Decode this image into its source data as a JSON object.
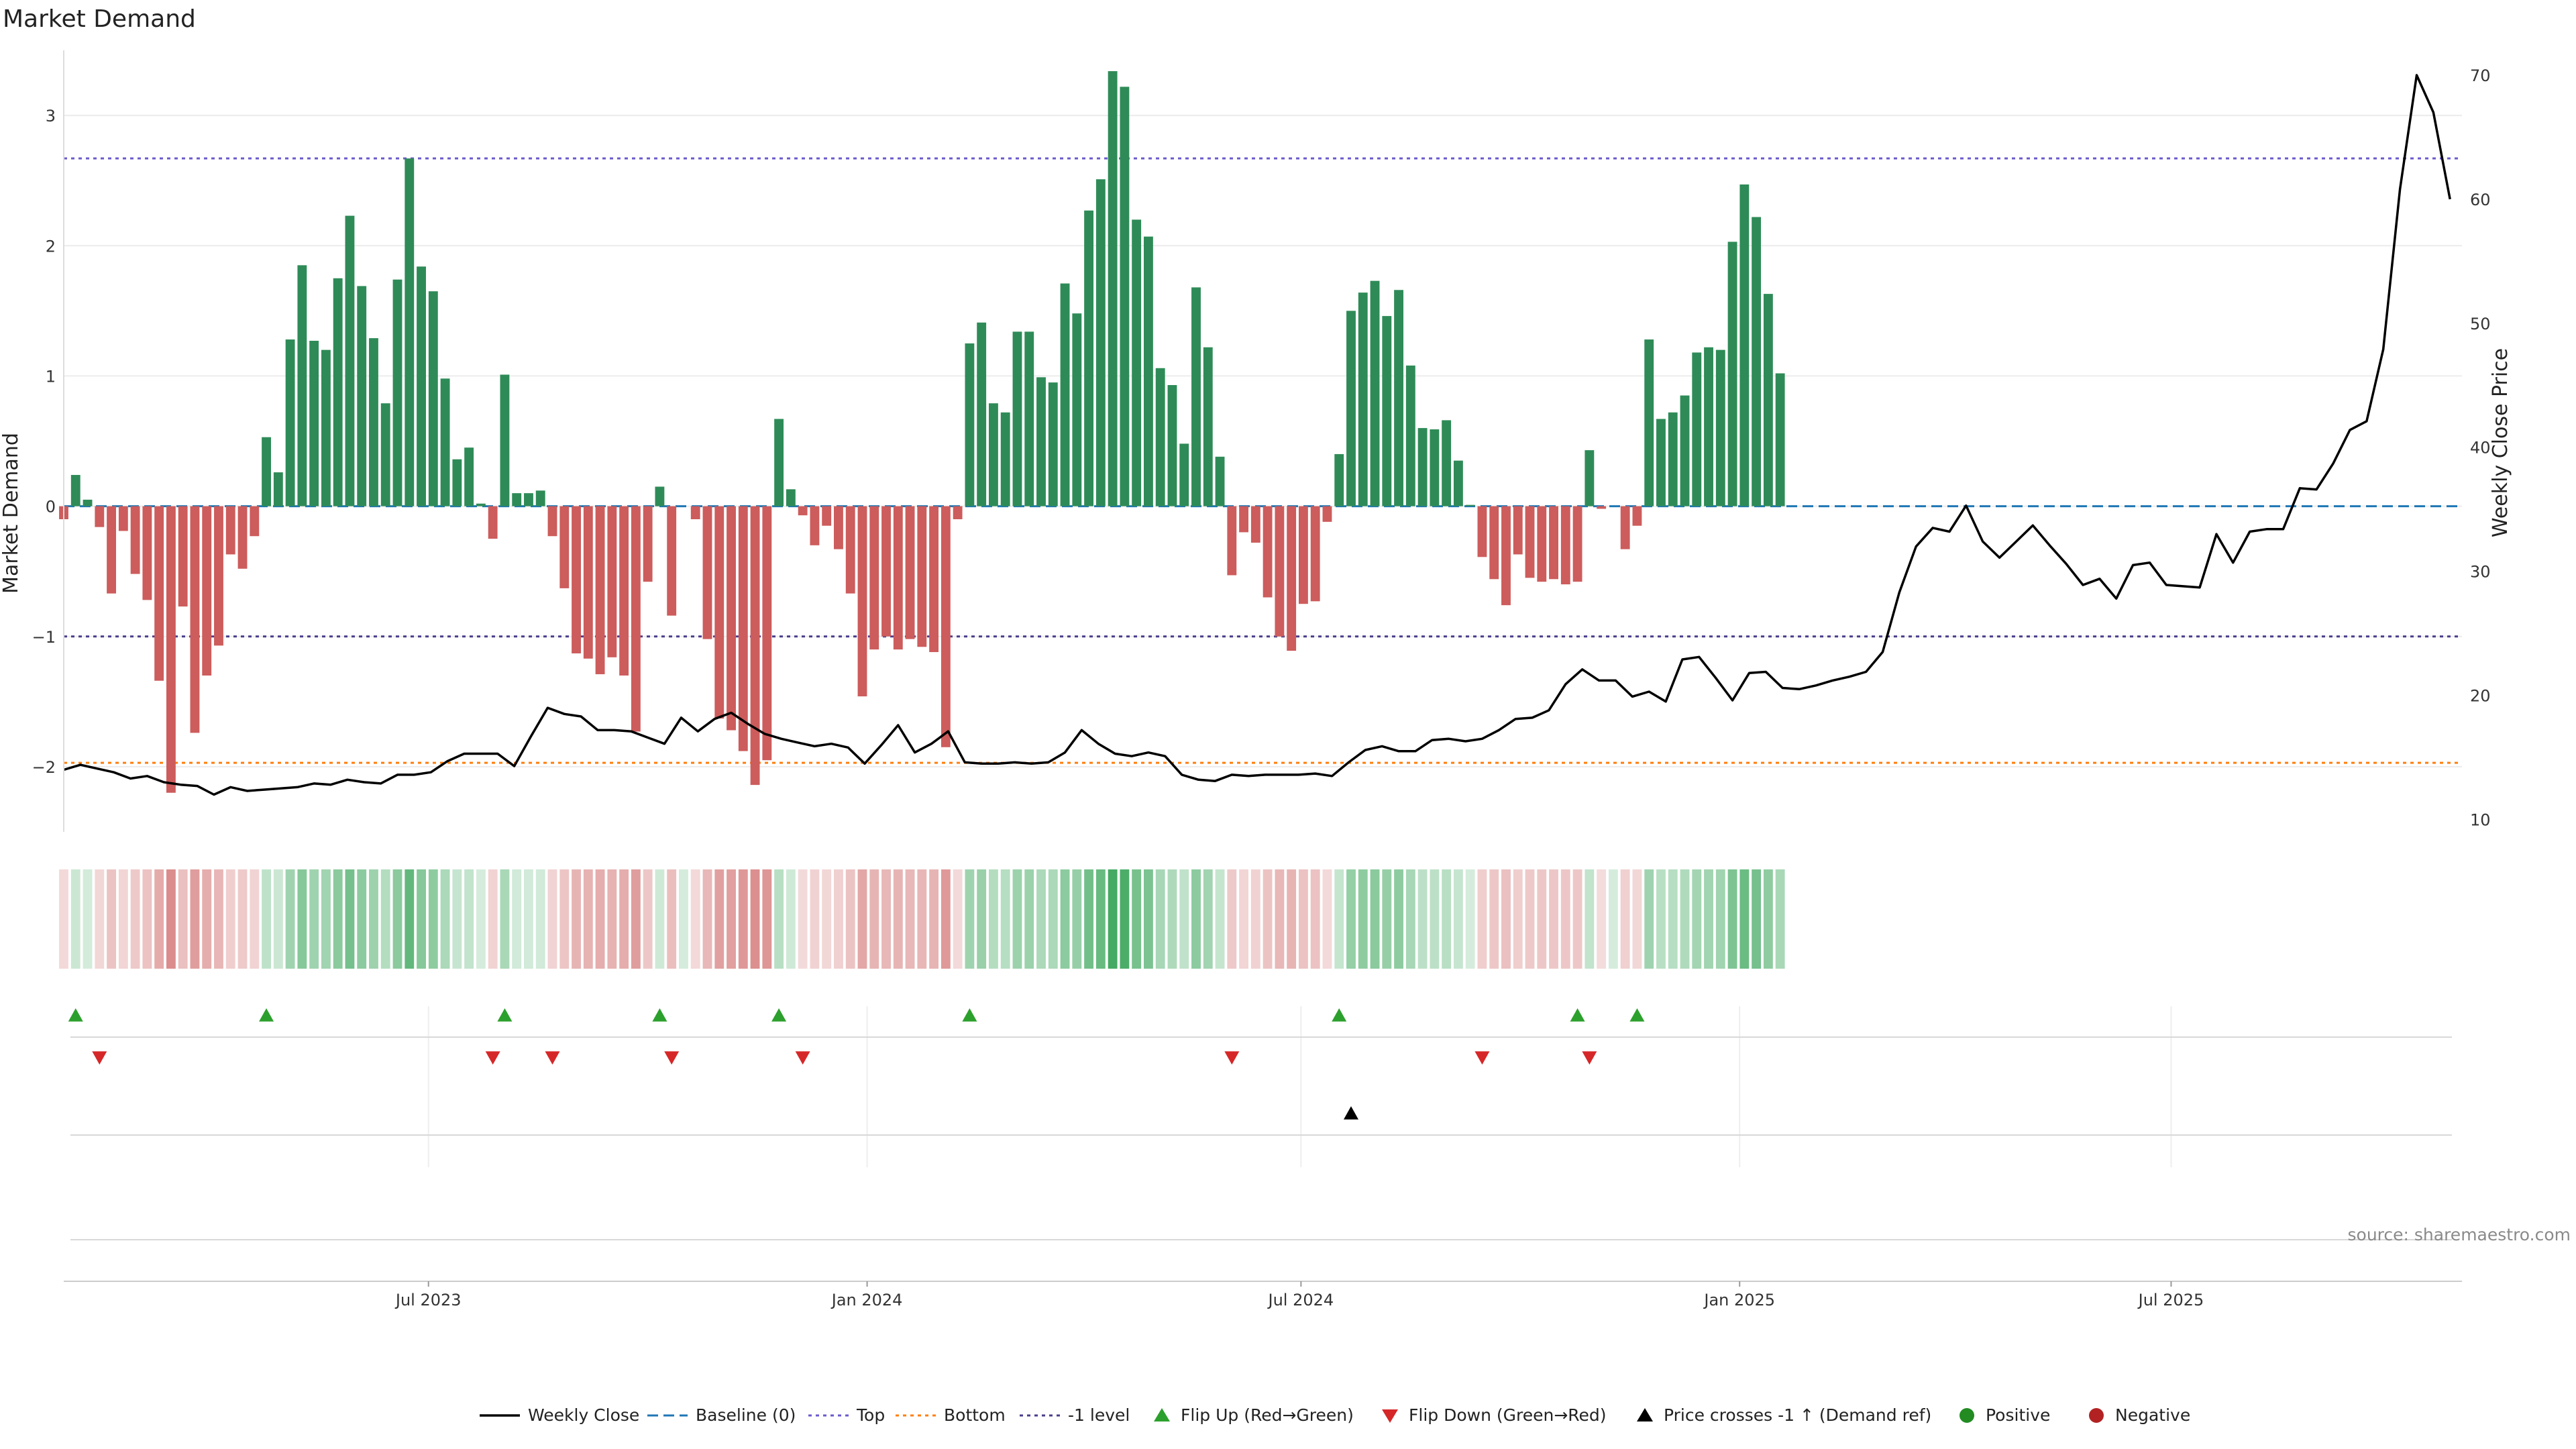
{
  "title": "Market Demand",
  "source": "source: sharemaestro.com",
  "colors": {
    "positive": "#2e8b57",
    "negative": "#cd5c5c",
    "price": "#000000",
    "baseline": "#1f77b4",
    "top": "#6a5acd",
    "bottom": "#ff7f0e",
    "minus1": "#483d8b",
    "flip_up": "#2ca02c",
    "flip_down": "#d62728",
    "cross": "#000000",
    "positive_dot": "#228b22",
    "negative_dot": "#b22222"
  },
  "chart_data": {
    "type": "bar",
    "title": "Market Demand",
    "ylabel": "Market Demand",
    "y2label": "Weekly Close Price",
    "ylim": [
      -2.5,
      3.5
    ],
    "y2lim": [
      9,
      72
    ],
    "yticks": [
      -2,
      -1,
      0,
      1,
      2,
      3
    ],
    "y2ticks": [
      10,
      20,
      30,
      40,
      50,
      60,
      70
    ],
    "xaxis": {
      "start": "2023-01-29",
      "end": "2025-10-31",
      "ticks": [
        {
          "date": "2023-07-01",
          "label": "Jul 2023"
        },
        {
          "date": "2024-01-01",
          "label": "Jan 2024"
        },
        {
          "date": "2024-07-01",
          "label": "Jul 2024"
        },
        {
          "date": "2025-01-01",
          "label": "Jan 2025"
        },
        {
          "date": "2025-07-01",
          "label": "Jul 2025"
        }
      ]
    },
    "reference_lines": {
      "baseline": 0,
      "top": 2.67,
      "bottom": -1.97,
      "minus1": -1
    },
    "bar_start_date": "2023-01-29",
    "bar_interval_days": 5,
    "demand": [
      -0.1,
      0.24,
      0.05,
      -0.16,
      -0.67,
      -0.19,
      -0.52,
      -0.72,
      -1.34,
      -2.2,
      -0.77,
      -1.74,
      -1.3,
      -1.07,
      -0.37,
      -0.48,
      -0.23,
      0.53,
      0.26,
      1.28,
      1.85,
      1.27,
      1.2,
      1.75,
      2.23,
      1.69,
      1.29,
      0.79,
      1.74,
      2.67,
      1.84,
      1.65,
      0.98,
      0.36,
      0.45,
      0.02,
      -0.25,
      1.01,
      0.1,
      0.1,
      0.12,
      -0.23,
      -0.63,
      -1.13,
      -1.17,
      -1.29,
      -1.16,
      -1.3,
      -1.73,
      -0.58,
      0.15,
      -0.84,
      0.0,
      -0.1,
      -1.02,
      -1.63,
      -1.72,
      -1.88,
      -2.14,
      -1.95,
      0.67,
      0.13,
      -0.07,
      -0.3,
      -0.15,
      -0.33,
      -0.67,
      -1.46,
      -1.1,
      -1.0,
      -1.1,
      -1.02,
      -1.08,
      -1.12,
      -1.85,
      -0.1,
      1.25,
      1.41,
      0.79,
      0.72,
      1.34,
      1.34,
      0.99,
      0.95,
      1.71,
      1.48,
      2.27,
      2.51,
      3.34,
      3.22,
      2.2,
      2.07,
      1.06,
      0.93,
      0.48,
      1.68,
      1.22,
      0.38,
      -0.53,
      -0.2,
      -0.28,
      -0.7,
      -1.0,
      -1.11,
      -0.75,
      -0.73,
      -0.12,
      0.4,
      1.5,
      1.64,
      1.73,
      1.46,
      1.66,
      1.08,
      0.6,
      0.59,
      0.66,
      0.35,
      0.01,
      -0.39,
      -0.56,
      -0.76,
      -0.37,
      -0.55,
      -0.58,
      -0.56,
      -0.6,
      -0.58,
      0.43,
      -0.02,
      0.0,
      -0.33,
      -0.15,
      1.28,
      0.67,
      0.72,
      0.85,
      1.18,
      1.22,
      1.2,
      2.03,
      2.47,
      2.22,
      1.63,
      1.02
    ],
    "price_series": [
      {
        "date": "2023-01-29",
        "close": 14.0
      },
      {
        "date": "2023-02-05",
        "close": 14.4
      },
      {
        "date": "2023-02-12",
        "close": 14.1
      },
      {
        "date": "2023-02-19",
        "close": 13.8
      },
      {
        "date": "2023-02-26",
        "close": 13.3
      },
      {
        "date": "2023-03-05",
        "close": 13.5
      },
      {
        "date": "2023-03-12",
        "close": 13.0
      },
      {
        "date": "2023-03-19",
        "close": 12.8
      },
      {
        "date": "2023-03-26",
        "close": 12.7
      },
      {
        "date": "2023-04-02",
        "close": 12.0
      },
      {
        "date": "2023-04-09",
        "close": 12.6
      },
      {
        "date": "2023-04-16",
        "close": 12.3
      },
      {
        "date": "2023-04-23",
        "close": 12.4
      },
      {
        "date": "2023-04-30",
        "close": 12.5
      },
      {
        "date": "2023-05-07",
        "close": 12.6
      },
      {
        "date": "2023-05-14",
        "close": 12.9
      },
      {
        "date": "2023-05-21",
        "close": 12.8
      },
      {
        "date": "2023-05-28",
        "close": 13.2
      },
      {
        "date": "2023-06-04",
        "close": 13.0
      },
      {
        "date": "2023-06-11",
        "close": 12.9
      },
      {
        "date": "2023-06-18",
        "close": 13.6
      },
      {
        "date": "2023-06-25",
        "close": 13.6
      },
      {
        "date": "2023-07-02",
        "close": 13.8
      },
      {
        "date": "2023-07-09",
        "close": 14.7
      },
      {
        "date": "2023-07-16",
        "close": 15.3
      },
      {
        "date": "2023-07-23",
        "close": 15.3
      },
      {
        "date": "2023-07-30",
        "close": 15.3
      },
      {
        "date": "2023-08-06",
        "close": 14.3
      },
      {
        "date": "2023-08-13",
        "close": 16.7
      },
      {
        "date": "2023-08-20",
        "close": 19.0
      },
      {
        "date": "2023-08-27",
        "close": 18.5
      },
      {
        "date": "2023-09-03",
        "close": 18.3
      },
      {
        "date": "2023-09-10",
        "close": 17.2
      },
      {
        "date": "2023-09-17",
        "close": 17.2
      },
      {
        "date": "2023-09-24",
        "close": 17.1
      },
      {
        "date": "2023-10-01",
        "close": 16.6
      },
      {
        "date": "2023-10-08",
        "close": 16.1
      },
      {
        "date": "2023-10-15",
        "close": 18.2
      },
      {
        "date": "2023-10-22",
        "close": 17.1
      },
      {
        "date": "2023-10-29",
        "close": 18.1
      },
      {
        "date": "2023-11-05",
        "close": 18.6
      },
      {
        "date": "2023-11-12",
        "close": 17.7
      },
      {
        "date": "2023-11-19",
        "close": 16.9
      },
      {
        "date": "2023-11-26",
        "close": 16.5
      },
      {
        "date": "2023-12-03",
        "close": 16.2
      },
      {
        "date": "2023-12-10",
        "close": 15.9
      },
      {
        "date": "2023-12-17",
        "close": 16.1
      },
      {
        "date": "2023-12-24",
        "close": 15.8
      },
      {
        "date": "2023-12-31",
        "close": 14.5
      },
      {
        "date": "2024-01-07",
        "close": 16.0
      },
      {
        "date": "2024-01-14",
        "close": 17.6
      },
      {
        "date": "2024-01-21",
        "close": 15.4
      },
      {
        "date": "2024-01-28",
        "close": 16.1
      },
      {
        "date": "2024-02-04",
        "close": 17.1
      },
      {
        "date": "2024-02-11",
        "close": 14.6
      },
      {
        "date": "2024-02-18",
        "close": 14.5
      },
      {
        "date": "2024-02-25",
        "close": 14.5
      },
      {
        "date": "2024-03-03",
        "close": 14.6
      },
      {
        "date": "2024-03-10",
        "close": 14.5
      },
      {
        "date": "2024-03-17",
        "close": 14.6
      },
      {
        "date": "2024-03-24",
        "close": 15.4
      },
      {
        "date": "2024-03-31",
        "close": 17.2
      },
      {
        "date": "2024-04-07",
        "close": 16.1
      },
      {
        "date": "2024-04-14",
        "close": 15.3
      },
      {
        "date": "2024-04-21",
        "close": 15.1
      },
      {
        "date": "2024-04-28",
        "close": 15.4
      },
      {
        "date": "2024-05-05",
        "close": 15.1
      },
      {
        "date": "2024-05-12",
        "close": 13.6
      },
      {
        "date": "2024-05-19",
        "close": 13.2
      },
      {
        "date": "2024-05-26",
        "close": 13.1
      },
      {
        "date": "2024-06-02",
        "close": 13.6
      },
      {
        "date": "2024-06-09",
        "close": 13.5
      },
      {
        "date": "2024-06-16",
        "close": 13.6
      },
      {
        "date": "2024-06-23",
        "close": 13.6
      },
      {
        "date": "2024-06-30",
        "close": 13.6
      },
      {
        "date": "2024-07-07",
        "close": 13.7
      },
      {
        "date": "2024-07-14",
        "close": 13.5
      },
      {
        "date": "2024-07-21",
        "close": 14.6
      },
      {
        "date": "2024-07-28",
        "close": 15.6
      },
      {
        "date": "2024-08-04",
        "close": 15.9
      },
      {
        "date": "2024-08-11",
        "close": 15.5
      },
      {
        "date": "2024-08-18",
        "close": 15.5
      },
      {
        "date": "2024-08-25",
        "close": 16.4
      },
      {
        "date": "2024-09-01",
        "close": 16.5
      },
      {
        "date": "2024-09-08",
        "close": 16.3
      },
      {
        "date": "2024-09-15",
        "close": 16.5
      },
      {
        "date": "2024-09-22",
        "close": 17.2
      },
      {
        "date": "2024-09-29",
        "close": 18.1
      },
      {
        "date": "2024-10-06",
        "close": 18.2
      },
      {
        "date": "2024-10-13",
        "close": 18.8
      },
      {
        "date": "2024-10-20",
        "close": 20.9
      },
      {
        "date": "2024-10-27",
        "close": 22.1
      },
      {
        "date": "2024-11-03",
        "close": 21.2
      },
      {
        "date": "2024-11-10",
        "close": 21.2
      },
      {
        "date": "2024-11-17",
        "close": 19.9
      },
      {
        "date": "2024-11-24",
        "close": 20.3
      },
      {
        "date": "2024-12-01",
        "close": 19.5
      },
      {
        "date": "2024-12-08",
        "close": 22.9
      },
      {
        "date": "2024-12-15",
        "close": 23.1
      },
      {
        "date": "2024-12-22",
        "close": 21.4
      },
      {
        "date": "2024-12-29",
        "close": 19.6
      },
      {
        "date": "2025-01-05",
        "close": 21.8
      },
      {
        "date": "2025-01-12",
        "close": 21.9
      },
      {
        "date": "2025-01-19",
        "close": 20.6
      },
      {
        "date": "2025-01-26",
        "close": 20.5
      },
      {
        "date": "2025-02-02",
        "close": 20.8
      },
      {
        "date": "2025-02-09",
        "close": 21.2
      },
      {
        "date": "2025-02-16",
        "close": 21.5
      },
      {
        "date": "2025-02-23",
        "close": 21.9
      },
      {
        "date": "2025-03-02",
        "close": 23.5
      },
      {
        "date": "2025-03-09",
        "close": 28.3
      },
      {
        "date": "2025-03-16",
        "close": 32.0
      },
      {
        "date": "2025-03-23",
        "close": 33.5
      },
      {
        "date": "2025-03-30",
        "close": 33.2
      },
      {
        "date": "2025-04-06",
        "close": 35.3
      },
      {
        "date": "2025-04-13",
        "close": 32.4
      },
      {
        "date": "2025-04-20",
        "close": 31.1
      },
      {
        "date": "2025-04-27",
        "close": 32.4
      },
      {
        "date": "2025-05-04",
        "close": 33.7
      },
      {
        "date": "2025-05-11",
        "close": 32.1
      },
      {
        "date": "2025-05-18",
        "close": 30.6
      },
      {
        "date": "2025-05-25",
        "close": 28.9
      },
      {
        "date": "2025-06-01",
        "close": 29.4
      },
      {
        "date": "2025-06-08",
        "close": 27.8
      },
      {
        "date": "2025-06-15",
        "close": 30.5
      },
      {
        "date": "2025-06-22",
        "close": 30.7
      },
      {
        "date": "2025-06-29",
        "close": 28.9
      },
      {
        "date": "2025-07-06",
        "close": 28.8
      },
      {
        "date": "2025-07-13",
        "close": 28.7
      },
      {
        "date": "2025-07-20",
        "close": 33.0
      },
      {
        "date": "2025-07-27",
        "close": 30.7
      },
      {
        "date": "2025-08-03",
        "close": 33.2
      },
      {
        "date": "2025-08-10",
        "close": 33.4
      },
      {
        "date": "2025-08-17",
        "close": 33.4
      },
      {
        "date": "2025-08-24",
        "close": 36.7
      },
      {
        "date": "2025-08-31",
        "close": 36.6
      },
      {
        "date": "2025-09-07",
        "close": 38.7
      },
      {
        "date": "2025-09-14",
        "close": 41.4
      },
      {
        "date": "2025-09-21",
        "close": 42.1
      },
      {
        "date": "2025-09-28",
        "close": 47.9
      },
      {
        "date": "2025-10-05",
        "close": 60.8
      },
      {
        "date": "2025-10-12",
        "close": 70.0
      },
      {
        "date": "2025-10-19",
        "close": 67.0
      },
      {
        "date": "2025-10-26",
        "close": 60.0
      }
    ],
    "flip_up_bars": [
      1,
      17,
      37,
      50,
      60,
      76,
      107,
      127,
      132
    ],
    "flip_down_bars": [
      3,
      36,
      41,
      51,
      62,
      98,
      119,
      128
    ],
    "price_cross_bars": [
      108
    ],
    "legend": [
      {
        "label": "Weekly Close",
        "style": "solid-black"
      },
      {
        "label": "Baseline (0)",
        "style": "dash-blue"
      },
      {
        "label": "Top",
        "style": "dot-purple"
      },
      {
        "label": "Bottom",
        "style": "dot-orange"
      },
      {
        "label": "-1 level",
        "style": "dot-darkslate"
      },
      {
        "label": "Flip Up (Red→Green)",
        "style": "triangle-up-green"
      },
      {
        "label": "Flip Down (Green→Red)",
        "style": "triangle-down-red"
      },
      {
        "label": "Price crosses -1 ↑ (Demand ref)",
        "style": "triangle-up-black"
      },
      {
        "label": "Positive",
        "style": "dot-green"
      },
      {
        "label": "Negative",
        "style": "dot-red"
      }
    ]
  }
}
